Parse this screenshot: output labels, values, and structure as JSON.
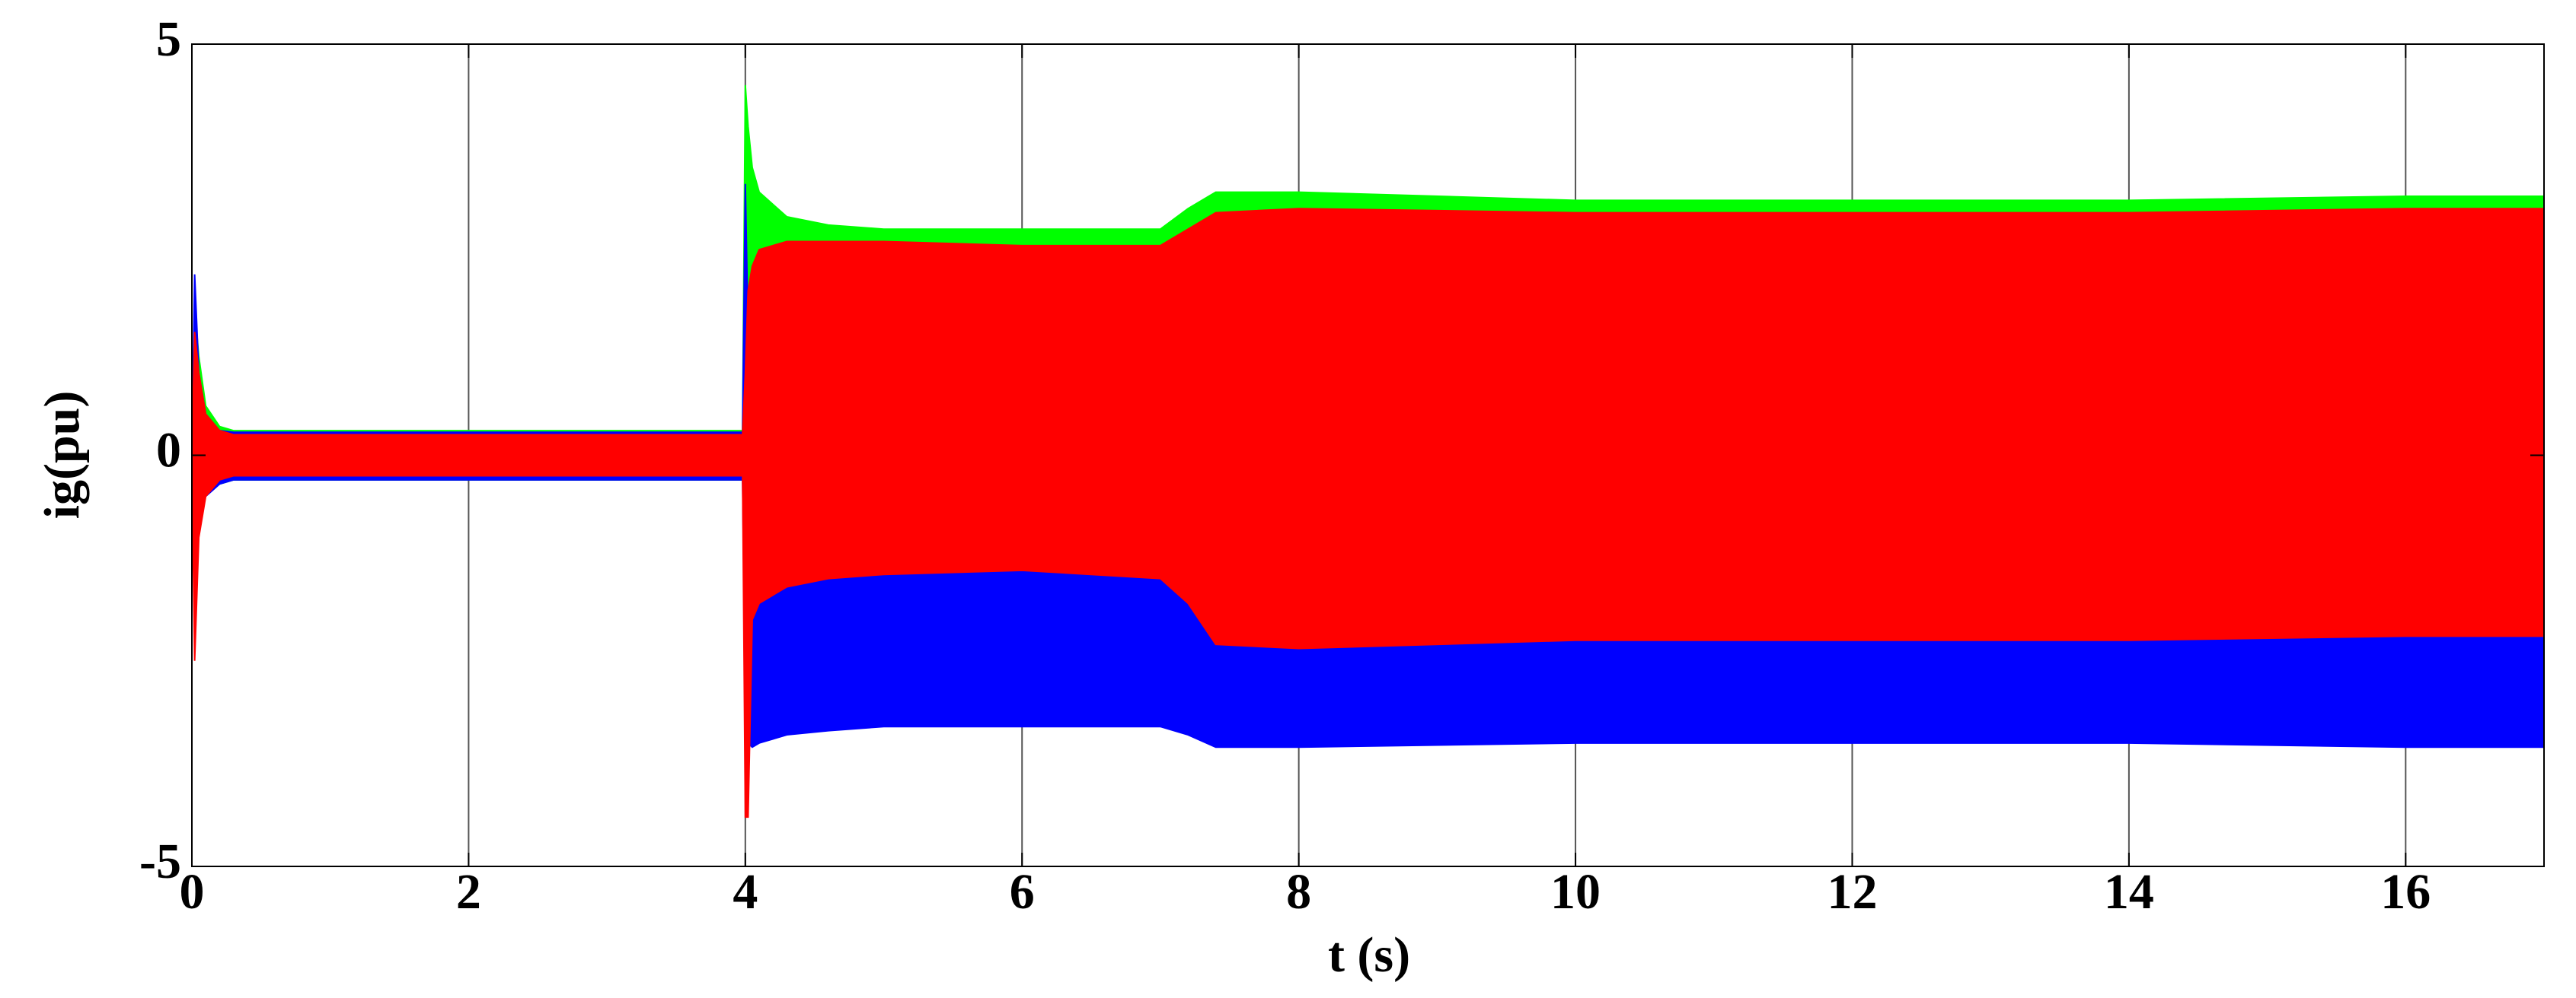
{
  "chart_data": {
    "type": "band",
    "xlabel": "t (s)",
    "ylabel": "ig(pu)",
    "x": [
      0,
      0.02,
      0.05,
      0.1,
      0.2,
      0.3,
      3.98,
      4.0,
      4.02,
      4.05,
      4.1,
      4.3,
      4.6,
      5,
      6,
      7,
      7.2,
      7.4,
      8,
      10,
      12,
      14,
      16,
      17
    ],
    "series": [
      {
        "color": "#00ff00",
        "upper": [
          0,
          1.8,
          1.2,
          0.6,
          0.35,
          0.3,
          0.3,
          4.5,
          4.0,
          3.5,
          3.2,
          2.9,
          2.8,
          2.75,
          2.75,
          2.75,
          3.0,
          3.2,
          3.2,
          3.1,
          3.1,
          3.1,
          3.15,
          3.15
        ],
        "lower": [
          0,
          -0.6,
          -0.5,
          -0.45,
          -0.35,
          -0.3,
          -0.3,
          -1.0,
          -1.0,
          -1.0,
          -1.0,
          -1.0,
          -1.0,
          -1.0,
          -1.0,
          -1.0,
          -1.0,
          -1.0,
          -1.0,
          -1.0,
          -1.0,
          -1.0,
          -1.0,
          -1.0
        ]
      },
      {
        "color": "#0000ff",
        "upper": [
          0,
          2.2,
          1.0,
          0.5,
          0.3,
          0.28,
          0.28,
          3.3,
          1.5,
          2.0,
          2.3,
          2.4,
          2.45,
          2.45,
          2.45,
          2.45,
          2.6,
          2.8,
          2.85,
          2.85,
          2.85,
          2.85,
          2.85,
          2.85
        ],
        "lower": [
          0,
          -0.7,
          -0.6,
          -0.5,
          -0.35,
          -0.3,
          -0.3,
          -3.0,
          -3.5,
          -3.55,
          -3.5,
          -3.4,
          -3.35,
          -3.3,
          -3.3,
          -3.3,
          -3.4,
          -3.55,
          -3.55,
          -3.5,
          -3.5,
          -3.5,
          -3.55,
          -3.55
        ]
      },
      {
        "color": "#ff0000",
        "upper": [
          0,
          1.5,
          1.0,
          0.5,
          0.3,
          0.25,
          0.25,
          1.0,
          2.0,
          2.3,
          2.5,
          2.6,
          2.6,
          2.6,
          2.55,
          2.55,
          2.75,
          2.95,
          3.0,
          2.95,
          2.95,
          2.95,
          3.0,
          3.0
        ],
        "lower": [
          0,
          -2.5,
          -1.0,
          -0.5,
          -0.3,
          -0.25,
          -0.25,
          -4.4,
          -4.4,
          -2.0,
          -1.8,
          -1.6,
          -1.5,
          -1.45,
          -1.4,
          -1.5,
          -1.8,
          -2.3,
          -2.35,
          -2.25,
          -2.25,
          -2.25,
          -2.2,
          -2.2
        ]
      }
    ],
    "xlim": [
      0,
      17
    ],
    "xticks": [
      0,
      2,
      4,
      6,
      8,
      10,
      12,
      14,
      16
    ],
    "ylim": [
      -5,
      5
    ],
    "yticks": [
      -5,
      0,
      5
    ],
    "grid": "x"
  }
}
